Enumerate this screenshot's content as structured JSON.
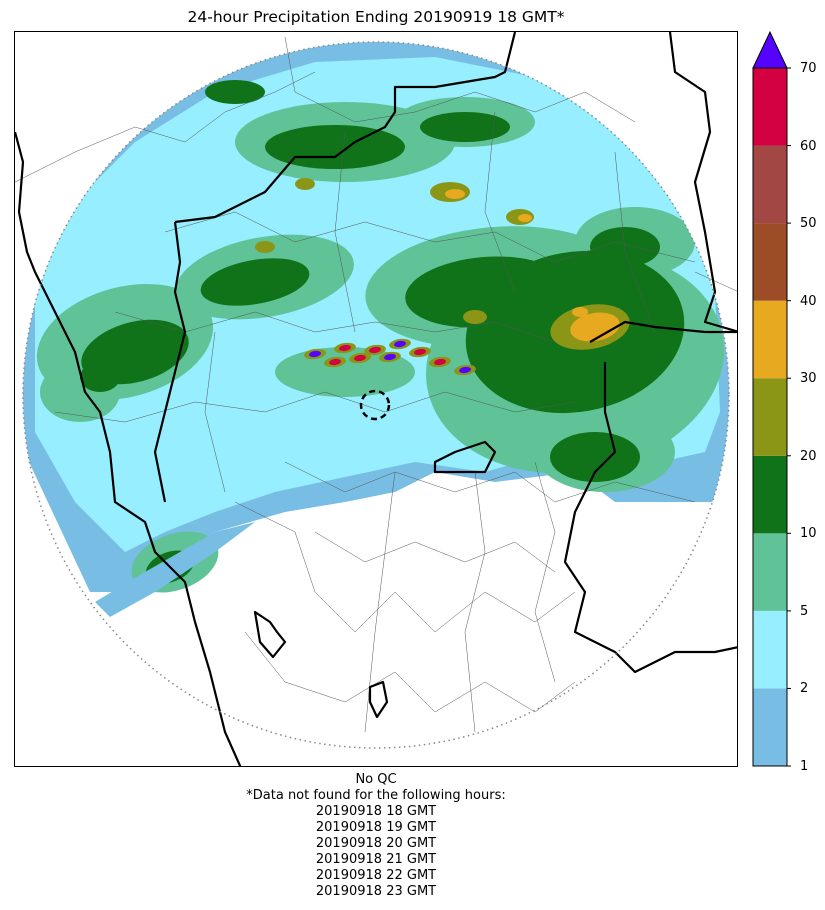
{
  "title": "24-hour Precipitation Ending 20190919 18 GMT*",
  "chart_data": {
    "type": "precipitation-map",
    "title": "24-hour Precipitation Ending 20190919 18 GMT*",
    "colorbar": {
      "ticks": [
        "1",
        "2",
        "5",
        "10",
        "20",
        "30",
        "40",
        "50",
        "60",
        "70"
      ],
      "bins": [
        {
          "from": 1,
          "to": 2,
          "color": "#78bee4"
        },
        {
          "from": 2,
          "to": 5,
          "color": "#96eefe"
        },
        {
          "from": 5,
          "to": 10,
          "color": "#5fc397"
        },
        {
          "from": 10,
          "to": 20,
          "color": "#10731a"
        },
        {
          "from": 20,
          "to": 30,
          "color": "#8b9617"
        },
        {
          "from": 30,
          "to": 40,
          "color": "#e7a91f"
        },
        {
          "from": 40,
          "to": 50,
          "color": "#9c4d27"
        },
        {
          "from": 50,
          "to": 60,
          "color": "#a34744"
        },
        {
          "from": 60,
          "to": 70,
          "color": "#d40142"
        }
      ],
      "extend_above_color": "#5404fe"
    },
    "radar_range_ring": "dotted"
  },
  "notes": {
    "qc": "No QC",
    "missing_header": "*Data not found for the following hours:",
    "missing_hours": [
      "20190918 18 GMT",
      "20190918 19 GMT",
      "20190918 20 GMT",
      "20190918 21 GMT",
      "20190918 22 GMT",
      "20190918 23 GMT"
    ]
  }
}
